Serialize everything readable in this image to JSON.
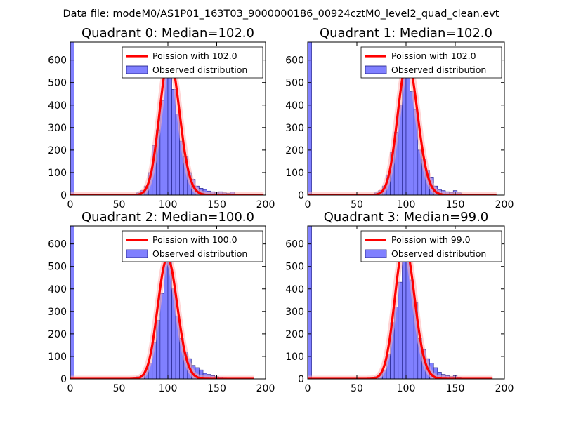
{
  "suptitle": "Data file: modeM0/AS1P01_163T03_9000000186_00924cztM0_level2_quad_clean.evt",
  "colors": {
    "bar_fill": "#8080ff",
    "bar_edge": "#1a1a80",
    "curve": "#ff0000",
    "curve_glow": "#ffb0b0"
  },
  "chart_data": [
    {
      "type": "bar",
      "title": "Quadrant 0: Median=102.0",
      "median": 102.0,
      "xlim": [
        0,
        200
      ],
      "ylim": [
        0,
        680
      ],
      "xticks": [
        0,
        50,
        100,
        150,
        200
      ],
      "yticks": [
        0,
        100,
        200,
        300,
        400,
        500,
        600
      ],
      "bin_width": 4,
      "bins": [
        [
          0,
          680
        ],
        [
          56,
          2
        ],
        [
          64,
          5
        ],
        [
          68,
          10
        ],
        [
          72,
          20
        ],
        [
          76,
          40
        ],
        [
          80,
          100
        ],
        [
          84,
          220
        ],
        [
          88,
          290
        ],
        [
          92,
          420
        ],
        [
          96,
          560
        ],
        [
          100,
          620
        ],
        [
          104,
          470
        ],
        [
          108,
          360
        ],
        [
          112,
          240
        ],
        [
          116,
          170
        ],
        [
          120,
          100
        ],
        [
          124,
          70
        ],
        [
          128,
          40
        ],
        [
          132,
          30
        ],
        [
          136,
          25
        ],
        [
          140,
          18
        ],
        [
          144,
          15
        ],
        [
          148,
          12
        ],
        [
          152,
          15
        ],
        [
          156,
          10
        ],
        [
          160,
          8
        ],
        [
          164,
          14
        ],
        [
          168,
          4
        ],
        [
          172,
          2
        ],
        [
          176,
          1
        ]
      ],
      "poisson": {
        "mean": 102.0,
        "xmax": 198
      },
      "legend": [
        "Poission with 102.0",
        "Observed distribution"
      ]
    },
    {
      "type": "bar",
      "title": "Quadrant 1: Median=102.0",
      "median": 102.0,
      "xlim": [
        0,
        200
      ],
      "ylim": [
        0,
        680
      ],
      "xticks": [
        0,
        50,
        100,
        150,
        200
      ],
      "yticks": [
        0,
        100,
        200,
        300,
        400,
        500,
        600
      ],
      "bin_width": 4,
      "bins": [
        [
          0,
          680
        ],
        [
          64,
          5
        ],
        [
          68,
          10
        ],
        [
          72,
          20
        ],
        [
          76,
          40
        ],
        [
          80,
          90
        ],
        [
          84,
          190
        ],
        [
          88,
          280
        ],
        [
          92,
          400
        ],
        [
          96,
          560
        ],
        [
          100,
          630
        ],
        [
          104,
          460
        ],
        [
          108,
          380
        ],
        [
          112,
          200
        ],
        [
          116,
          160
        ],
        [
          120,
          110
        ],
        [
          124,
          80
        ],
        [
          128,
          40
        ],
        [
          132,
          25
        ],
        [
          136,
          20
        ],
        [
          140,
          15
        ],
        [
          144,
          12
        ],
        [
          148,
          20
        ],
        [
          152,
          10
        ],
        [
          156,
          5
        ],
        [
          160,
          3
        ],
        [
          164,
          2
        ]
      ],
      "poisson": {
        "mean": 102.0,
        "xmax": 192
      },
      "legend": [
        "Poission with 102.0",
        "Observed distribution"
      ]
    },
    {
      "type": "bar",
      "title": "Quadrant 2: Median=100.0",
      "median": 100.0,
      "xlim": [
        0,
        200
      ],
      "ylim": [
        0,
        680
      ],
      "xticks": [
        0,
        50,
        100,
        150,
        200
      ],
      "yticks": [
        0,
        100,
        200,
        300,
        400,
        500,
        600
      ],
      "bin_width": 4,
      "bins": [
        [
          0,
          680
        ],
        [
          60,
          2
        ],
        [
          64,
          5
        ],
        [
          68,
          10
        ],
        [
          72,
          15
        ],
        [
          76,
          40
        ],
        [
          80,
          70
        ],
        [
          84,
          160
        ],
        [
          88,
          260
        ],
        [
          92,
          380
        ],
        [
          96,
          520
        ],
        [
          100,
          600
        ],
        [
          104,
          400
        ],
        [
          108,
          280
        ],
        [
          112,
          180
        ],
        [
          116,
          120
        ],
        [
          120,
          90
        ],
        [
          124,
          60
        ],
        [
          128,
          50
        ],
        [
          132,
          40
        ],
        [
          136,
          25
        ],
        [
          140,
          20
        ],
        [
          144,
          15
        ],
        [
          148,
          10
        ],
        [
          152,
          8
        ],
        [
          156,
          4
        ],
        [
          160,
          2
        ]
      ],
      "poisson": {
        "mean": 100.0,
        "xmax": 188
      },
      "legend": [
        "Poission with 100.0",
        "Observed distribution"
      ]
    },
    {
      "type": "bar",
      "title": "Quadrant 3: Median=99.0",
      "median": 99.0,
      "xlim": [
        0,
        200
      ],
      "ylim": [
        0,
        680
      ],
      "xticks": [
        0,
        50,
        100,
        150,
        200
      ],
      "yticks": [
        0,
        100,
        200,
        300,
        400,
        500,
        600
      ],
      "bin_width": 4,
      "bins": [
        [
          0,
          680
        ],
        [
          64,
          5
        ],
        [
          68,
          10
        ],
        [
          72,
          20
        ],
        [
          76,
          40
        ],
        [
          80,
          110
        ],
        [
          84,
          250
        ],
        [
          88,
          320
        ],
        [
          92,
          430
        ],
        [
          96,
          560
        ],
        [
          100,
          600
        ],
        [
          104,
          440
        ],
        [
          108,
          340
        ],
        [
          112,
          180
        ],
        [
          116,
          130
        ],
        [
          120,
          90
        ],
        [
          124,
          70
        ],
        [
          128,
          50
        ],
        [
          132,
          30
        ],
        [
          136,
          20
        ],
        [
          140,
          15
        ],
        [
          144,
          10
        ],
        [
          148,
          15
        ],
        [
          152,
          5
        ],
        [
          156,
          2
        ]
      ],
      "poisson": {
        "mean": 99.0,
        "xmax": 188
      },
      "legend": [
        "Poission with 99.0",
        "Observed distribution"
      ]
    }
  ]
}
